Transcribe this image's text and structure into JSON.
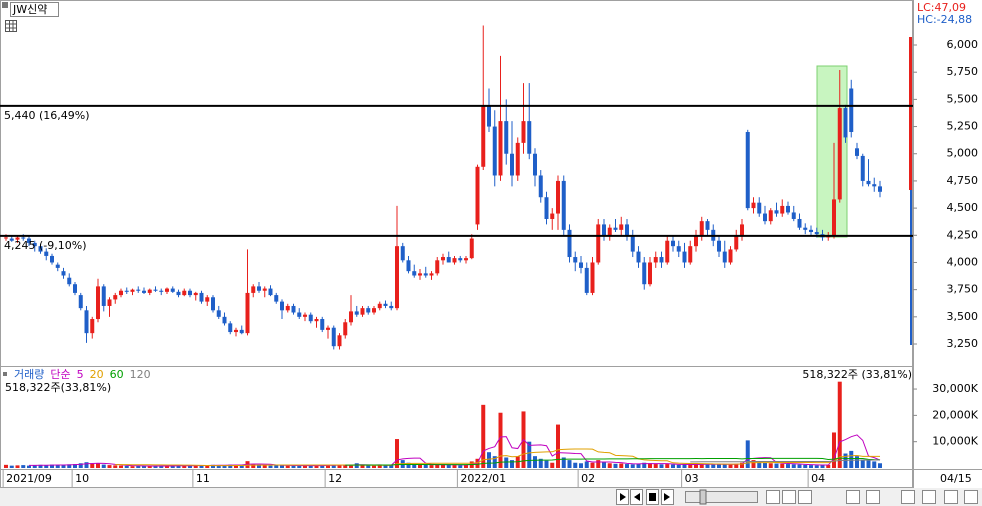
{
  "header": {
    "stock": "JW신약",
    "lc": "LC:47,09",
    "hc": "HC:-24,88"
  },
  "chart_data": {
    "type": "candlestick",
    "up_color": "#e8201c",
    "down_color": "#1f5fc8",
    "categories": [
      "2021/09",
      null,
      null,
      null,
      null,
      null,
      null,
      null,
      null,
      null,
      null,
      null,
      "10",
      null,
      null,
      null,
      null,
      null,
      null,
      null,
      null,
      null,
      null,
      null,
      null,
      null,
      null,
      null,
      null,
      null,
      null,
      null,
      null,
      "11",
      null,
      null,
      null,
      null,
      null,
      null,
      null,
      null,
      null,
      null,
      null,
      null,
      null,
      null,
      null,
      null,
      null,
      null,
      null,
      null,
      null,
      null,
      "12",
      null,
      null,
      null,
      null,
      null,
      null,
      null,
      null,
      null,
      null,
      null,
      null,
      null,
      null,
      null,
      null,
      null,
      null,
      null,
      null,
      null,
      null,
      "2022/01",
      null,
      null,
      null,
      null,
      null,
      null,
      null,
      null,
      null,
      null,
      null,
      null,
      null,
      null,
      null,
      null,
      null,
      null,
      null,
      null,
      "02",
      null,
      null,
      null,
      null,
      null,
      null,
      null,
      null,
      null,
      null,
      null,
      null,
      null,
      null,
      null,
      null,
      null,
      "03",
      null,
      null,
      null,
      null,
      null,
      null,
      null,
      null,
      null,
      null,
      null,
      null,
      null,
      null,
      null,
      null,
      null,
      null,
      null,
      null,
      null,
      "04",
      null,
      null,
      null,
      null,
      null,
      null,
      null,
      null,
      null,
      null,
      null
    ],
    "x_end_label": "04/15",
    "ohlc": [
      [
        4230,
        4260,
        4200,
        4230
      ],
      [
        4220,
        4250,
        4190,
        4200
      ],
      [
        4210,
        4240,
        4180,
        4230
      ],
      [
        4230,
        4260,
        4200,
        4220
      ],
      [
        4220,
        4240,
        4150,
        4180
      ],
      [
        4180,
        4200,
        4100,
        4150
      ],
      [
        4150,
        4170,
        4080,
        4100
      ],
      [
        4100,
        4130,
        4020,
        4060
      ],
      [
        4060,
        4080,
        3980,
        4000
      ],
      [
        3980,
        4000,
        3920,
        3950
      ],
      [
        3920,
        3950,
        3850,
        3880
      ],
      [
        3860,
        3900,
        3780,
        3800
      ],
      [
        3800,
        3820,
        3700,
        3720
      ],
      [
        3700,
        3720,
        3560,
        3580
      ],
      [
        3560,
        3600,
        3260,
        3350
      ],
      [
        3350,
        3500,
        3300,
        3480
      ],
      [
        3480,
        3850,
        3450,
        3780
      ],
      [
        3780,
        3800,
        3550,
        3600
      ],
      [
        3600,
        3680,
        3500,
        3660
      ],
      [
        3660,
        3720,
        3620,
        3700
      ],
      [
        3700,
        3760,
        3680,
        3740
      ],
      [
        3740,
        3770,
        3710,
        3730
      ],
      [
        3730,
        3760,
        3700,
        3750
      ],
      [
        3750,
        3780,
        3720,
        3740
      ],
      [
        3740,
        3770,
        3710,
        3720
      ],
      [
        3720,
        3760,
        3700,
        3750
      ],
      [
        3750,
        3780,
        3730,
        3740
      ],
      [
        3740,
        3760,
        3700,
        3730
      ],
      [
        3730,
        3770,
        3710,
        3760
      ],
      [
        3760,
        3780,
        3720,
        3730
      ],
      [
        3730,
        3750,
        3680,
        3700
      ],
      [
        3700,
        3760,
        3690,
        3740
      ],
      [
        3740,
        3760,
        3680,
        3700
      ],
      [
        3700,
        3730,
        3650,
        3720
      ],
      [
        3720,
        3740,
        3620,
        3640
      ],
      [
        3640,
        3700,
        3600,
        3680
      ],
      [
        3680,
        3700,
        3540,
        3560
      ],
      [
        3560,
        3600,
        3480,
        3500
      ],
      [
        3500,
        3540,
        3420,
        3440
      ],
      [
        3440,
        3460,
        3340,
        3360
      ],
      [
        3360,
        3400,
        3320,
        3380
      ],
      [
        3380,
        3420,
        3340,
        3350
      ],
      [
        3350,
        4120,
        3330,
        3720
      ],
      [
        3720,
        3800,
        3680,
        3780
      ],
      [
        3780,
        3820,
        3720,
        3740
      ],
      [
        3740,
        3780,
        3680,
        3760
      ],
      [
        3760,
        3790,
        3690,
        3700
      ],
      [
        3700,
        3720,
        3620,
        3640
      ],
      [
        3640,
        3660,
        3480,
        3560
      ],
      [
        3560,
        3620,
        3540,
        3600
      ],
      [
        3600,
        3620,
        3520,
        3540
      ],
      [
        3540,
        3580,
        3480,
        3500
      ],
      [
        3500,
        3540,
        3460,
        3520
      ],
      [
        3520,
        3540,
        3440,
        3460
      ],
      [
        3460,
        3500,
        3400,
        3480
      ],
      [
        3480,
        3500,
        3360,
        3380
      ],
      [
        3380,
        3420,
        3300,
        3400
      ],
      [
        3400,
        3420,
        3200,
        3230
      ],
      [
        3230,
        3350,
        3200,
        3330
      ],
      [
        3330,
        3480,
        3300,
        3450
      ],
      [
        3450,
        3700,
        3420,
        3550
      ],
      [
        3550,
        3600,
        3500,
        3520
      ],
      [
        3520,
        3600,
        3500,
        3580
      ],
      [
        3580,
        3600,
        3520,
        3540
      ],
      [
        3540,
        3600,
        3520,
        3580
      ],
      [
        3580,
        3640,
        3560,
        3620
      ],
      [
        3620,
        3650,
        3580,
        3600
      ],
      [
        3600,
        3640,
        3560,
        3580
      ],
      [
        3580,
        4520,
        3560,
        4150
      ],
      [
        4150,
        4180,
        4000,
        4020
      ],
      [
        4020,
        4060,
        3900,
        3920
      ],
      [
        3920,
        3980,
        3860,
        3880
      ],
      [
        3880,
        3940,
        3840,
        3900
      ],
      [
        3900,
        3960,
        3860,
        3880
      ],
      [
        3880,
        3920,
        3840,
        3900
      ],
      [
        3900,
        4050,
        3880,
        4020
      ],
      [
        4020,
        4080,
        3980,
        4050
      ],
      [
        4050,
        4100,
        4000,
        4000
      ],
      [
        4000,
        4060,
        3980,
        4040
      ],
      [
        4040,
        4060,
        4000,
        4020
      ],
      [
        4020,
        4060,
        3990,
        4040
      ],
      [
        4040,
        4260,
        4030,
        4220
      ],
      [
        4350,
        4900,
        4300,
        4880
      ],
      [
        4880,
        6180,
        4850,
        5440
      ],
      [
        5440,
        5600,
        5200,
        5250
      ],
      [
        5250,
        5400,
        4700,
        4800
      ],
      [
        4800,
        5900,
        4750,
        5300
      ],
      [
        5300,
        5500,
        4900,
        5000
      ],
      [
        5000,
        5300,
        4700,
        4800
      ],
      [
        4800,
        5150,
        4750,
        5100
      ],
      [
        5100,
        5650,
        5000,
        5300
      ],
      [
        5300,
        5650,
        4950,
        5000
      ],
      [
        5000,
        5050,
        4700,
        4800
      ],
      [
        4800,
        4850,
        4550,
        4600
      ],
      [
        4600,
        4650,
        4350,
        4400
      ],
      [
        4400,
        4500,
        4300,
        4450
      ],
      [
        4450,
        4800,
        4300,
        4750
      ],
      [
        4750,
        4800,
        4250,
        4300
      ],
      [
        4300,
        4350,
        4000,
        4050
      ],
      [
        4050,
        4100,
        3920,
        4000
      ],
      [
        4000,
        4060,
        3900,
        3950
      ],
      [
        3950,
        4000,
        3700,
        3720
      ],
      [
        3720,
        4050,
        3700,
        4000
      ],
      [
        4000,
        4400,
        3980,
        4350
      ],
      [
        4350,
        4400,
        4200,
        4250
      ],
      [
        4250,
        4350,
        4200,
        4320
      ],
      [
        4320,
        4400,
        4280,
        4300
      ],
      [
        4300,
        4420,
        4250,
        4350
      ],
      [
        4350,
        4400,
        4200,
        4250
      ],
      [
        4250,
        4300,
        4050,
        4100
      ],
      [
        4100,
        4150,
        3950,
        4000
      ],
      [
        4000,
        4050,
        3750,
        3800
      ],
      [
        3800,
        4050,
        3780,
        4000
      ],
      [
        4000,
        4100,
        3950,
        4050
      ],
      [
        4050,
        4100,
        3950,
        4000
      ],
      [
        4000,
        4250,
        3980,
        4200
      ],
      [
        4200,
        4250,
        4100,
        4150
      ],
      [
        4150,
        4200,
        4050,
        4100
      ],
      [
        4100,
        4180,
        3950,
        4000
      ],
      [
        4000,
        4200,
        3980,
        4150
      ],
      [
        4150,
        4300,
        4100,
        4250
      ],
      [
        4250,
        4420,
        4200,
        4380
      ],
      [
        4380,
        4400,
        4250,
        4300
      ],
      [
        4300,
        4350,
        4150,
        4200
      ],
      [
        4200,
        4250,
        4050,
        4100
      ],
      [
        4100,
        4200,
        3950,
        4000
      ],
      [
        4000,
        4150,
        3980,
        4120
      ],
      [
        4120,
        4300,
        4100,
        4250
      ],
      [
        4250,
        4400,
        4200,
        4350
      ],
      [
        5200,
        5220,
        4480,
        4500
      ],
      [
        4500,
        4600,
        4450,
        4550
      ],
      [
        4550,
        4600,
        4420,
        4450
      ],
      [
        4450,
        4520,
        4350,
        4380
      ],
      [
        4380,
        4500,
        4350,
        4480
      ],
      [
        4480,
        4550,
        4420,
        4450
      ],
      [
        4450,
        4580,
        4420,
        4520
      ],
      [
        4520,
        4560,
        4440,
        4460
      ],
      [
        4460,
        4520,
        4380,
        4400
      ],
      [
        4400,
        4450,
        4300,
        4320
      ],
      [
        4320,
        4360,
        4260,
        4300
      ],
      [
        4300,
        4340,
        4250,
        4280
      ],
      [
        4280,
        4320,
        4230,
        4260
      ],
      [
        4260,
        4300,
        4200,
        4230
      ],
      [
        4230,
        4280,
        4200,
        4240
      ],
      [
        4240,
        5100,
        4220,
        4580
      ],
      [
        4580,
        5770,
        4550,
        5420
      ],
      [
        5420,
        5450,
        5100,
        5150
      ],
      [
        5600,
        5680,
        5150,
        5200
      ],
      [
        5050,
        5100,
        4950,
        4980
      ],
      [
        4980,
        5000,
        4700,
        4750
      ],
      [
        4750,
        4950,
        4700,
        4720
      ],
      [
        4720,
        4780,
        4650,
        4700
      ],
      [
        4700,
        4750,
        4600,
        4650
      ]
    ],
    "ylim": [
      3057,
      6368
    ],
    "yticks": [
      {
        "value": 6000,
        "label": "6,000"
      },
      {
        "value": 5750,
        "label": "5,750"
      },
      {
        "value": 5500,
        "label": "5,500"
      },
      {
        "value": 5250,
        "label": "5,250"
      },
      {
        "value": 5000,
        "label": "5,000"
      },
      {
        "value": 4750,
        "label": "4,750"
      },
      {
        "value": 4500,
        "label": "4,500"
      },
      {
        "value": 4250,
        "label": "4,250"
      },
      {
        "value": 4000,
        "label": "4,000"
      },
      {
        "value": 3750,
        "label": "3,750"
      },
      {
        "value": 3500,
        "label": "3,500"
      },
      {
        "value": 3250,
        "label": "3,250"
      }
    ],
    "hlines": [
      {
        "value": 5440,
        "label": "5,440 (16,49%)"
      },
      {
        "value": 4245,
        "label": "4,245 (-9,10%)"
      }
    ],
    "volume": {
      "title": "거래량",
      "ma_label": "단순",
      "info": "518,322주(33,81%)",
      "info_right": "518,322주 (33,81%)",
      "ma": [
        {
          "period": 5,
          "color": "#c000c0"
        },
        {
          "period": 20,
          "color": "#e0a000"
        },
        {
          "period": 60,
          "color": "#00a000"
        },
        {
          "period": 120,
          "color": "#808080"
        }
      ],
      "ylim": [
        0,
        38000
      ],
      "yticks": [
        {
          "value": 30000,
          "label": "30,000K"
        },
        {
          "value": 20000,
          "label": "20,000K"
        },
        {
          "value": 10000,
          "label": "10,000K"
        }
      ],
      "values": [
        1200,
        900,
        1000,
        1100,
        900,
        1000,
        1200,
        1100,
        1300,
        1000,
        1200,
        1400,
        1500,
        1800,
        2200,
        1600,
        1900,
        1300,
        1100,
        1000,
        900,
        800,
        700,
        900,
        800,
        700,
        800,
        900,
        700,
        800,
        1000,
        900,
        800,
        1100,
        1000,
        900,
        1200,
        1100,
        1000,
        1300,
        1200,
        1100,
        2600,
        1500,
        1200,
        1000,
        900,
        1100,
        1000,
        900,
        800,
        900,
        1000,
        900,
        800,
        1000,
        1200,
        1100,
        1300,
        1000,
        900,
        1800,
        1200,
        1000,
        900,
        1100,
        1000,
        1200,
        11000,
        3000,
        2000,
        1500,
        1300,
        1200,
        1100,
        1400,
        1300,
        1200,
        1100,
        1000,
        1200,
        2500,
        3500,
        24000,
        6000,
        4500,
        21000,
        4000,
        3000,
        4500,
        21500,
        10000,
        4500,
        3500,
        2800,
        2000,
        16500,
        4000,
        3000,
        2000,
        1800,
        2500,
        2000,
        3000,
        2200,
        1800,
        1600,
        1700,
        1500,
        1400,
        1600,
        2000,
        1800,
        1500,
        1400,
        1500,
        1300,
        1200,
        1400,
        1300,
        1500,
        1600,
        1400,
        1300,
        1500,
        1400,
        1300,
        1600,
        2000,
        10500,
        3000,
        2200,
        2000,
        1800,
        1700,
        1600,
        1500,
        1400,
        1300,
        1200,
        1100,
        1000,
        1100,
        1200,
        13500,
        32800,
        5500,
        6500,
        4500,
        3200,
        3000,
        2500,
        1800
      ]
    }
  }
}
